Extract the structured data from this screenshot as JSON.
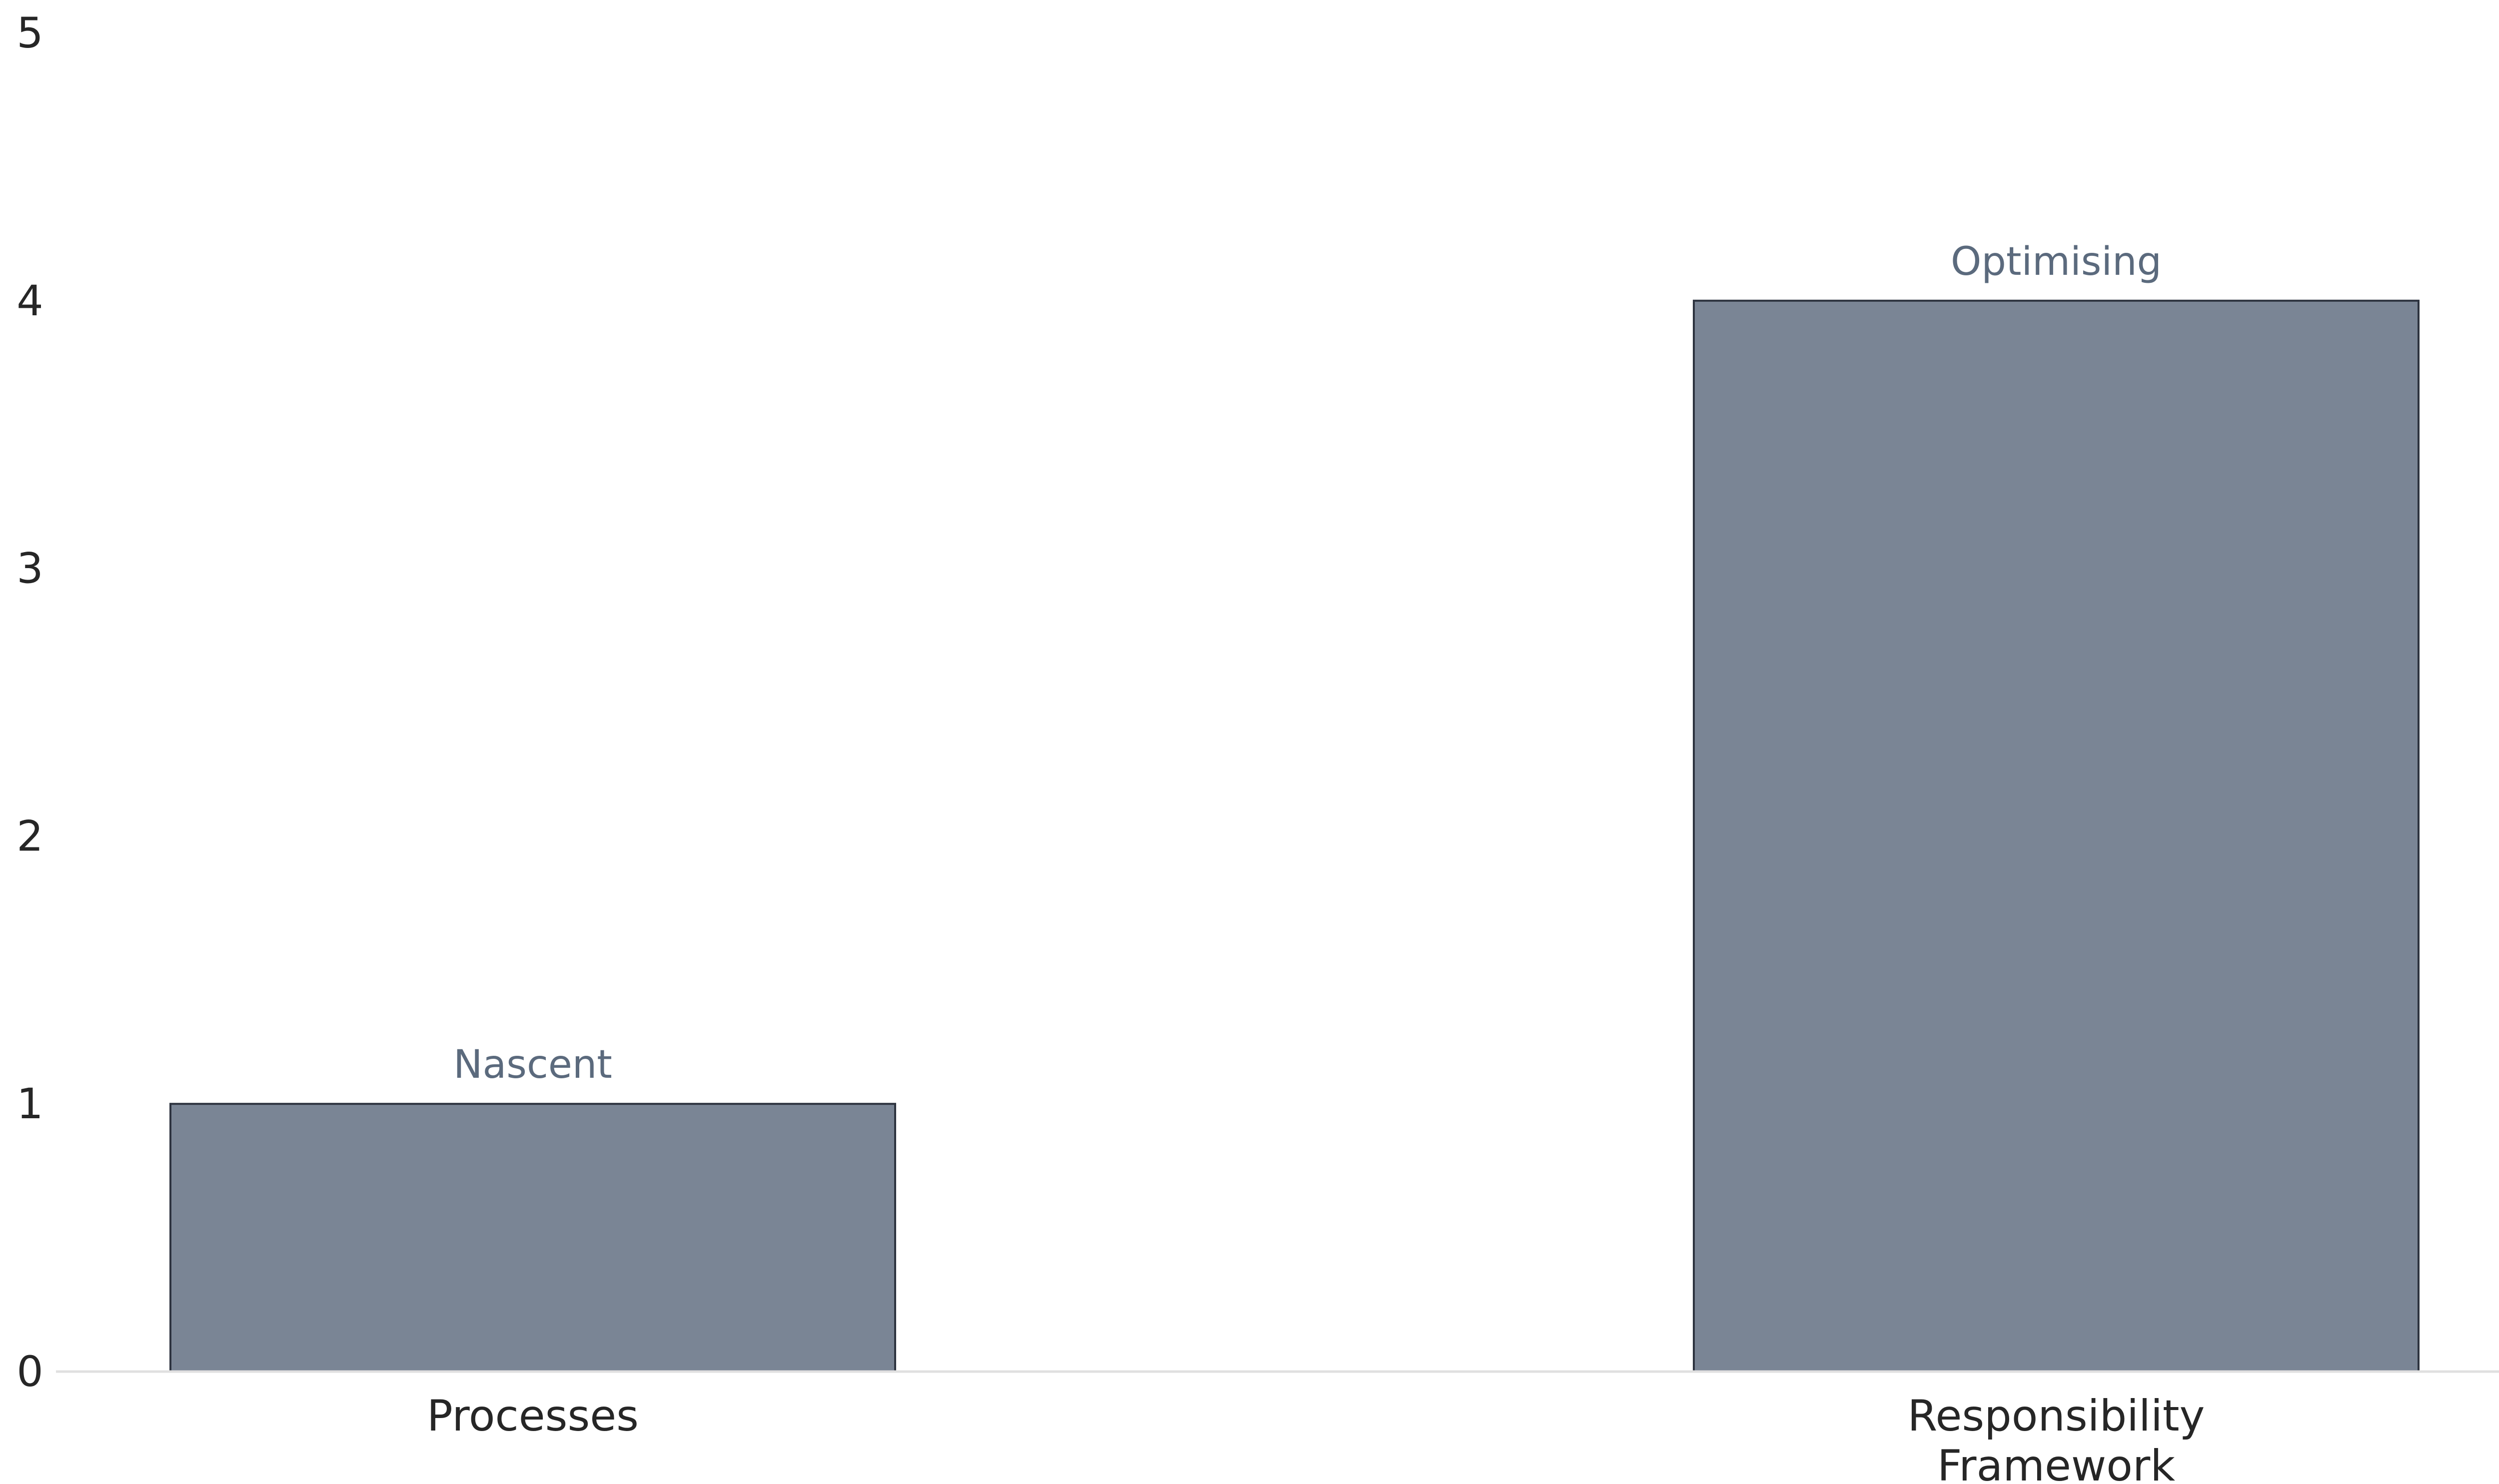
{
  "chart_data": {
    "type": "bar",
    "title": "",
    "xlabel": "",
    "ylabel": "",
    "ylim": [
      0,
      5
    ],
    "yticks": [
      "0",
      "1",
      "2",
      "3",
      "4",
      "5"
    ],
    "categories": [
      [
        "Processes"
      ],
      [
        "Responsibility",
        "Framework"
      ]
    ],
    "values": [
      1,
      4
    ],
    "data_labels": [
      "Nascent",
      "Optimising"
    ],
    "grid": false,
    "legend": "none",
    "colors": {
      "bar_fill": "#7a8595",
      "bar_edge": "#2e3440",
      "axis_line": "#e0e0e0",
      "tick_text": "#262626",
      "data_label_text": "#5b6a7d"
    }
  }
}
